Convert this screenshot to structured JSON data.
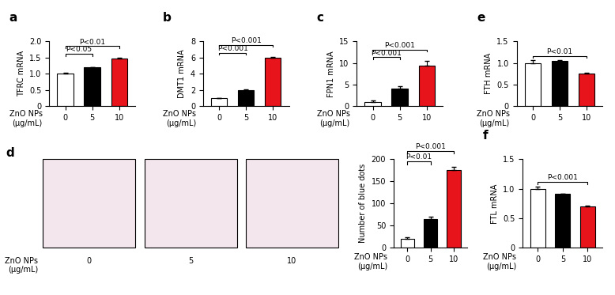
{
  "chart_data": [
    {
      "panel": "a",
      "type": "bar",
      "y_label": "TFRC mRNA",
      "x_label": "ZnO NPs\n(μg/mL)",
      "categories": [
        "0",
        "5",
        "10"
      ],
      "values": [
        1.0,
        1.19,
        1.47
      ],
      "errors": [
        0.04,
        0.02,
        0.02
      ],
      "colors": [
        "#ffffff",
        "#000000",
        "#e8141c"
      ],
      "ylim": [
        0,
        2.0
      ],
      "yticks": [
        0,
        0.5,
        1.0,
        1.5,
        2.0
      ],
      "comparisons": [
        {
          "groups": [
            "0",
            "5"
          ],
          "label": "P<0.05"
        },
        {
          "groups": [
            "0",
            "10"
          ],
          "label": "P<0.01"
        }
      ]
    },
    {
      "panel": "b",
      "type": "bar",
      "y_label": "DMT1 mRNA",
      "x_label": "ZnO NPs\n(μg/mL)",
      "categories": [
        "0",
        "5",
        "10"
      ],
      "values": [
        1.0,
        2.0,
        6.0
      ],
      "errors": [
        0.05,
        0.08,
        0.12
      ],
      "colors": [
        "#ffffff",
        "#000000",
        "#e8141c"
      ],
      "ylim": [
        0,
        8
      ],
      "yticks": [
        0,
        2,
        4,
        6,
        8
      ],
      "comparisons": [
        {
          "groups": [
            "0",
            "5"
          ],
          "label": "P<0.001"
        },
        {
          "groups": [
            "0",
            "10"
          ],
          "label": "P<0.001"
        }
      ]
    },
    {
      "panel": "c",
      "type": "bar",
      "y_label": "FPN1 mRNA",
      "x_label": "ZnO NPs\n(μg/mL)",
      "categories": [
        "0",
        "5",
        "10"
      ],
      "values": [
        1.0,
        4.1,
        9.4
      ],
      "errors": [
        0.3,
        0.6,
        1.0
      ],
      "colors": [
        "#ffffff",
        "#000000",
        "#e8141c"
      ],
      "ylim": [
        0,
        15
      ],
      "yticks": [
        0,
        5,
        10,
        15
      ],
      "comparisons": [
        {
          "groups": [
            "0",
            "5"
          ],
          "label": "P<0.001"
        },
        {
          "groups": [
            "0",
            "10"
          ],
          "label": "P<0.001"
        }
      ]
    },
    {
      "panel": "e",
      "type": "bar",
      "y_label": "FTH mRNA",
      "x_label": "ZnO NPs\n(μg/mL)",
      "categories": [
        "0",
        "5",
        "10"
      ],
      "values": [
        1.0,
        1.05,
        0.75
      ],
      "errors": [
        0.06,
        0.02,
        0.02
      ],
      "colors": [
        "#ffffff",
        "#000000",
        "#e8141c"
      ],
      "ylim": [
        0,
        1.5
      ],
      "yticks": [
        0,
        0.5,
        1.0,
        1.5
      ],
      "comparisons": [
        {
          "groups": [
            "0",
            "10"
          ],
          "label": "P<0.01"
        }
      ]
    },
    {
      "panel": "d",
      "type": "bar",
      "y_label": "Number of blue dots",
      "x_label": "ZnO NPs\n(μg/mL)",
      "categories": [
        "0",
        "5",
        "10"
      ],
      "values": [
        20,
        65,
        175
      ],
      "errors": [
        3,
        5,
        8
      ],
      "colors": [
        "#ffffff",
        "#000000",
        "#e8141c"
      ],
      "ylim": [
        0,
        200
      ],
      "yticks": [
        0,
        50,
        100,
        150,
        200
      ],
      "comparisons": [
        {
          "groups": [
            "0",
            "5"
          ],
          "label": "P<0.01"
        },
        {
          "groups": [
            "0",
            "10"
          ],
          "label": "P<0.001"
        }
      ]
    },
    {
      "panel": "f",
      "type": "bar",
      "y_label": "FTL mRNA",
      "x_label": "ZnO NPs\n(μg/mL)",
      "categories": [
        "0",
        "5",
        "10"
      ],
      "values": [
        1.0,
        0.91,
        0.7
      ],
      "errors": [
        0.03,
        0.01,
        0.01
      ],
      "colors": [
        "#ffffff",
        "#000000",
        "#e8141c"
      ],
      "ylim": [
        0,
        1.5
      ],
      "yticks": [
        0,
        0.5,
        1.0,
        1.5
      ],
      "comparisons": [
        {
          "groups": [
            "0",
            "10"
          ],
          "label": "P<0.001"
        }
      ]
    }
  ],
  "images": {
    "panel": "d",
    "x_label": "ZnO NPs\n(μg/mL)",
    "labels": [
      "0",
      "5",
      "10"
    ]
  }
}
